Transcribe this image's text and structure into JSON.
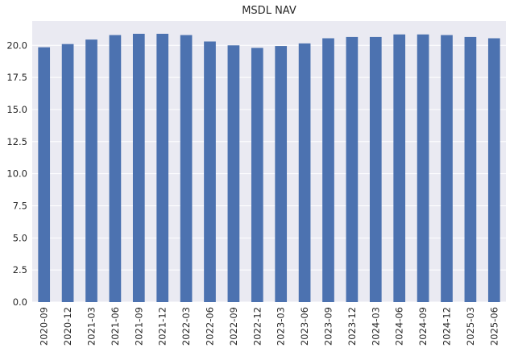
{
  "chart_data": {
    "type": "bar",
    "title": "MSDL NAV",
    "xlabel": "",
    "ylabel": "",
    "categories": [
      "2020-09",
      "2020-12",
      "2021-03",
      "2021-06",
      "2021-09",
      "2021-12",
      "2022-03",
      "2022-06",
      "2022-09",
      "2022-12",
      "2023-03",
      "2023-06",
      "2023-09",
      "2023-12",
      "2024-03",
      "2024-06",
      "2024-09",
      "2024-12",
      "2025-03",
      "2025-06"
    ],
    "values": [
      19.85,
      20.1,
      20.45,
      20.8,
      20.9,
      20.9,
      20.8,
      20.3,
      20.0,
      19.8,
      19.95,
      20.15,
      20.55,
      20.65,
      20.65,
      20.85,
      20.85,
      20.8,
      20.65,
      20.55
    ],
    "ylim": [
      0,
      21.9
    ],
    "yticks": [
      "0.0",
      "2.5",
      "5.0",
      "7.5",
      "10.0",
      "12.5",
      "15.0",
      "17.5",
      "20.0"
    ],
    "grid": true,
    "colors": {
      "bar": "#4c72b0",
      "background": "#eaeaf2",
      "grid": "#ffffff"
    }
  }
}
